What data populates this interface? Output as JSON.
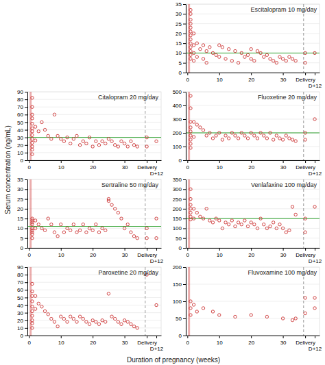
{
  "chart_data": [
    {
      "type": "scatter",
      "title": "Escitalopram 10 mg/day",
      "x": [
        1,
        1,
        1,
        1,
        1,
        1,
        1,
        1,
        1,
        1,
        1,
        1,
        1,
        2,
        2,
        2,
        2,
        3,
        3,
        4,
        5,
        5,
        6,
        6,
        7,
        8,
        9,
        10,
        10,
        11,
        12,
        13,
        14,
        15,
        16,
        17,
        18,
        19,
        20,
        20,
        21,
        22,
        23,
        24,
        25,
        26,
        27,
        28,
        29,
        30,
        31,
        32,
        33,
        34,
        37,
        37,
        40
      ],
      "values": [
        32,
        30,
        27,
        25,
        23,
        21,
        19,
        17,
        15,
        13,
        11,
        9,
        7,
        20,
        14,
        10,
        6,
        15,
        8,
        12,
        14,
        7,
        11,
        5,
        13,
        10,
        9,
        8,
        14,
        13,
        7,
        12,
        6,
        11,
        5,
        10,
        8,
        9,
        7,
        12,
        6,
        11,
        10,
        8,
        9,
        7,
        6,
        5,
        8,
        7,
        6,
        8,
        7,
        6,
        10,
        5,
        10
      ],
      "color": "#cc3333",
      "marker": "open-circle",
      "xlim": [
        -0.5,
        41.5
      ],
      "xticks": [
        0,
        10,
        20,
        30,
        {
          "value": 37,
          "label": "Delivery"
        },
        {
          "value": 40,
          "label": "D+12"
        }
      ],
      "ylim": [
        0,
        35
      ],
      "yticks": [
        0,
        5,
        10,
        15,
        20,
        25,
        30,
        35
      ],
      "grid": true,
      "reference_lines": [
        10
      ],
      "dashed_vlines": [
        36.5
      ],
      "highlight_vlines": [
        0.5
      ]
    },
    {
      "type": "scatter",
      "title": "Citalopram 20 mg/day",
      "x": [
        1,
        1,
        1,
        1,
        1,
        1,
        1,
        1,
        1,
        1,
        1,
        1,
        1,
        2,
        2,
        3,
        4,
        5,
        6,
        7,
        8,
        9,
        10,
        11,
        12,
        13,
        14,
        15,
        16,
        17,
        18,
        19,
        20,
        21,
        22,
        23,
        24,
        25,
        26,
        27,
        28,
        29,
        30,
        31,
        32,
        33,
        34,
        37,
        37,
        40
      ],
      "values": [
        82,
        70,
        60,
        55,
        48,
        42,
        38,
        33,
        28,
        23,
        18,
        14,
        8,
        44,
        26,
        38,
        50,
        40,
        32,
        28,
        60,
        32,
        28,
        25,
        30,
        22,
        28,
        32,
        20,
        25,
        22,
        30,
        18,
        25,
        20,
        25,
        22,
        28,
        25,
        20,
        18,
        25,
        22,
        18,
        25,
        20,
        18,
        30,
        18,
        25
      ],
      "color": "#cc3333",
      "marker": "open-circle",
      "xlim": [
        -0.5,
        41.5
      ],
      "xticks": [
        0,
        10,
        20,
        30,
        {
          "value": 37,
          "label": "Delivery"
        },
        {
          "value": 40,
          "label": "D+12"
        }
      ],
      "ylim": [
        0,
        90
      ],
      "yticks": [
        0,
        10,
        20,
        30,
        40,
        50,
        60,
        70,
        80,
        90
      ],
      "grid": true,
      "reference_lines": [
        30
      ],
      "dashed_vlines": [
        36.5
      ],
      "highlight_vlines": [
        0.5
      ]
    },
    {
      "type": "scatter",
      "title": "Fluoxetine 20 mg/day",
      "x": [
        1,
        1,
        1,
        1,
        1,
        1,
        1,
        1,
        1,
        2,
        2,
        3,
        4,
        5,
        6,
        7,
        8,
        9,
        10,
        11,
        12,
        13,
        14,
        15,
        16,
        17,
        18,
        19,
        20,
        21,
        22,
        23,
        24,
        25,
        26,
        27,
        28,
        29,
        30,
        31,
        32,
        33,
        34,
        37,
        37,
        40
      ],
      "values": [
        470,
        380,
        280,
        240,
        210,
        180,
        150,
        120,
        90,
        280,
        170,
        260,
        240,
        220,
        180,
        200,
        160,
        180,
        200,
        150,
        180,
        160,
        200,
        180,
        160,
        200,
        180,
        160,
        200,
        180,
        160,
        200,
        180,
        160,
        200,
        150,
        180,
        160,
        150,
        180,
        160,
        150,
        140,
        200,
        150,
        300
      ],
      "color": "#cc3333",
      "marker": "open-circle",
      "xlim": [
        -0.5,
        41.5
      ],
      "xticks": [
        0,
        10,
        20,
        30,
        {
          "value": 37,
          "label": "Delivery"
        },
        {
          "value": 40,
          "label": "D+12"
        }
      ],
      "ylim": [
        0,
        500
      ],
      "yticks": [
        0,
        100,
        200,
        300,
        400,
        500
      ],
      "grid": true,
      "reference_lines": [
        200
      ],
      "dashed_vlines": [
        36.5
      ],
      "highlight_vlines": [
        0.5
      ]
    },
    {
      "type": "scatter",
      "title": "Sertraline 50 mg/day",
      "x": [
        1,
        1,
        1,
        1,
        1,
        1,
        1,
        1,
        1,
        2,
        2,
        3,
        4,
        5,
        6,
        7,
        8,
        9,
        10,
        11,
        12,
        13,
        14,
        15,
        16,
        17,
        18,
        19,
        20,
        21,
        22,
        23,
        24,
        25,
        25,
        26,
        27,
        28,
        29,
        30,
        31,
        32,
        33,
        34,
        37,
        37,
        40,
        40
      ],
      "values": [
        15,
        14,
        13,
        12,
        10,
        9,
        8,
        7,
        5,
        14,
        10,
        12,
        10,
        9,
        15,
        12,
        8,
        6,
        12,
        8,
        10,
        9,
        12,
        8,
        9,
        12,
        8,
        10,
        9,
        12,
        8,
        10,
        9,
        25,
        24,
        22,
        20,
        18,
        15,
        10,
        12,
        8,
        6,
        5,
        10,
        5,
        15,
        5
      ],
      "color": "#cc3333",
      "marker": "open-circle",
      "xlim": [
        -0.5,
        41.5
      ],
      "xticks": [
        0,
        10,
        20,
        30,
        {
          "value": 37,
          "label": "Delivery"
        },
        {
          "value": 40,
          "label": "D+12"
        }
      ],
      "ylim": [
        0,
        35
      ],
      "yticks": [
        0,
        5,
        10,
        15,
        20,
        25,
        30,
        35
      ],
      "grid": true,
      "reference_lines": [
        11
      ],
      "dashed_vlines": [
        36.5
      ],
      "highlight_vlines": [
        0.5
      ]
    },
    {
      "type": "scatter",
      "title": "Venlafaxine 100 mg/day",
      "x": [
        1,
        1,
        1,
        1,
        1,
        1,
        1,
        2,
        2,
        3,
        4,
        5,
        6,
        7,
        8,
        9,
        10,
        11,
        12,
        13,
        14,
        15,
        16,
        17,
        18,
        19,
        20,
        21,
        22,
        23,
        24,
        25,
        26,
        27,
        28,
        29,
        30,
        31,
        32,
        33,
        34,
        37,
        37,
        40
      ],
      "values": [
        300,
        250,
        220,
        200,
        180,
        160,
        145,
        200,
        150,
        180,
        160,
        150,
        200,
        140,
        130,
        150,
        140,
        100,
        130,
        120,
        140,
        110,
        130,
        120,
        140,
        110,
        130,
        120,
        100,
        150,
        120,
        100,
        110,
        130,
        100,
        120,
        100,
        80,
        90,
        210,
        170,
        150,
        80,
        210
      ],
      "color": "#cc3333",
      "marker": "open-circle",
      "xlim": [
        -0.5,
        41.5
      ],
      "xticks": [
        0,
        10,
        20,
        30,
        {
          "value": 37,
          "label": "Delivery"
        },
        {
          "value": 40,
          "label": "D+12"
        }
      ],
      "ylim": [
        0,
        350
      ],
      "yticks": [
        0,
        50,
        100,
        150,
        200,
        250,
        300,
        350
      ],
      "grid": true,
      "reference_lines": [
        150
      ],
      "dashed_vlines": [
        36.5
      ],
      "highlight_vlines": [
        0.5
      ]
    },
    {
      "type": "scatter",
      "title": "Paroxetine 20 mg/day",
      "x": [
        1,
        1,
        1,
        1,
        1,
        1,
        1,
        1,
        1,
        1,
        2,
        2,
        3,
        4,
        5,
        6,
        7,
        8,
        9,
        10,
        11,
        12,
        13,
        14,
        15,
        16,
        17,
        18,
        19,
        20,
        21,
        22,
        23,
        24,
        25,
        26,
        27,
        28,
        29,
        30,
        31,
        32,
        33,
        34,
        37,
        40
      ],
      "values": [
        68,
        58,
        52,
        45,
        38,
        32,
        26,
        20,
        16,
        10,
        52,
        35,
        42,
        38,
        32,
        28,
        22,
        18,
        12,
        25,
        22,
        18,
        25,
        22,
        18,
        25,
        22,
        18,
        15,
        20,
        18,
        15,
        20,
        18,
        55,
        25,
        22,
        18,
        15,
        20,
        18,
        15,
        12,
        10,
        80,
        40
      ],
      "color": "#cc3333",
      "marker": "open-circle",
      "xlim": [
        -0.5,
        41.5
      ],
      "xticks": [
        0,
        10,
        20,
        30,
        {
          "value": 37,
          "label": "Delivery"
        },
        {
          "value": 40,
          "label": "D+12"
        }
      ],
      "ylim": [
        0,
        90
      ],
      "yticks": [
        0,
        10,
        20,
        30,
        40,
        50,
        60,
        70,
        80,
        90
      ],
      "grid": true,
      "dashed_vlines": [
        36.5
      ],
      "highlight_vlines": [
        0.5
      ]
    },
    {
      "type": "scatter",
      "title": "Fluvoxamine 100 mg/day",
      "x": [
        1,
        1,
        1,
        2,
        3,
        5,
        8,
        10,
        15,
        20,
        25,
        30,
        33,
        34,
        37,
        37,
        40,
        40
      ],
      "values": [
        100,
        80,
        60,
        90,
        70,
        80,
        70,
        60,
        55,
        60,
        55,
        50,
        45,
        50,
        110,
        65,
        110,
        80
      ],
      "color": "#cc3333",
      "marker": "open-circle",
      "xlim": [
        -0.5,
        41.5
      ],
      "xticks": [
        0,
        10,
        20,
        30,
        {
          "value": 37,
          "label": "Delivery"
        },
        {
          "value": 40,
          "label": "D+12"
        }
      ],
      "ylim": [
        0,
        200
      ],
      "yticks": [
        0,
        50,
        100,
        150,
        200
      ],
      "grid": true,
      "dashed_vlines": [
        36.5
      ],
      "highlight_vlines": [
        0.5
      ]
    }
  ],
  "x_label": "Duration of pregnancy (weeks)",
  "y_label": "Serum concentration (ng/mL)"
}
